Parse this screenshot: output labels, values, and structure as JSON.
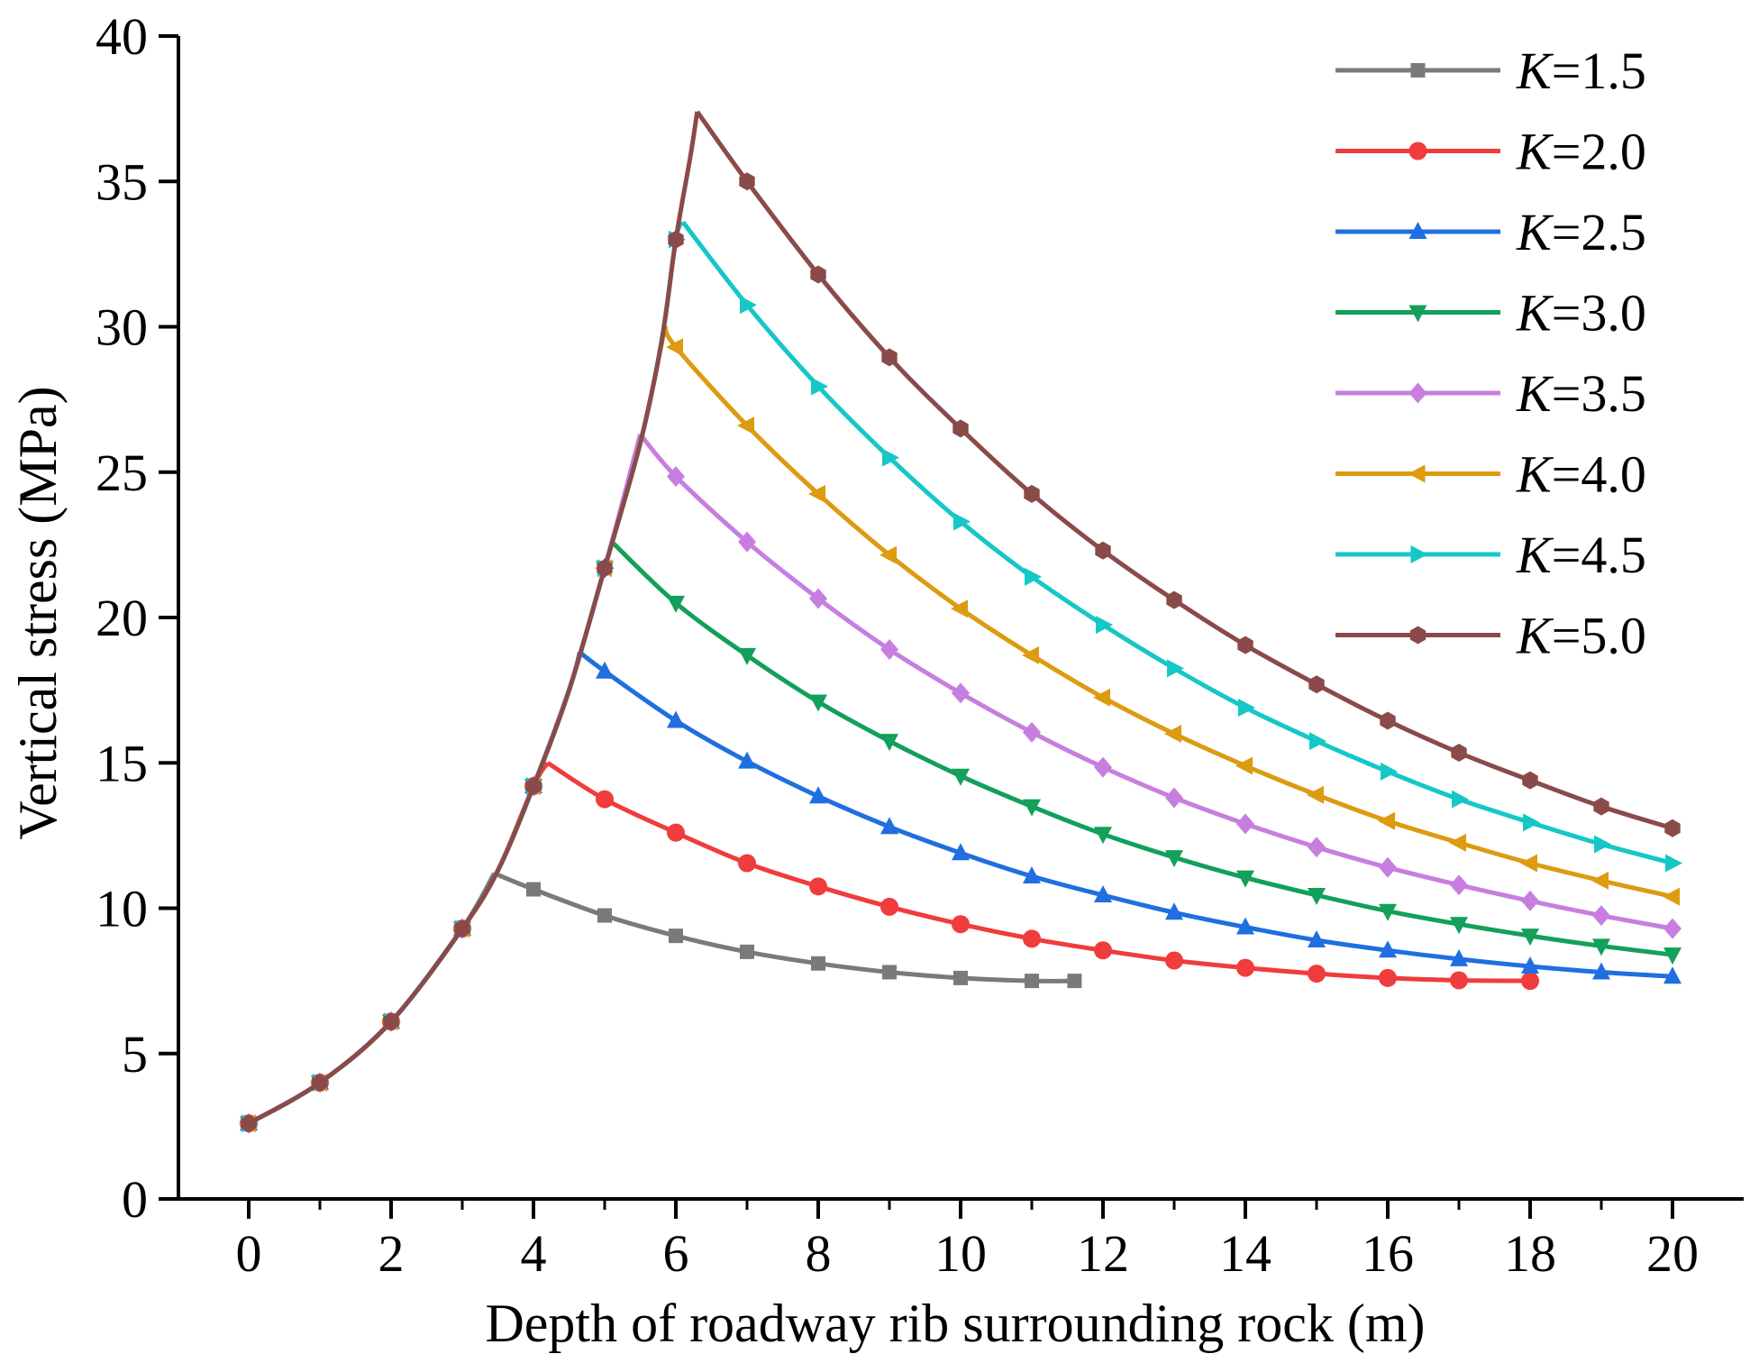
{
  "chart_data": {
    "type": "line",
    "xlabel": "Depth of roadway rib surrounding rock (m)",
    "ylabel": "Vertical stress (MPa)",
    "xlim": [
      -1,
      21
    ],
    "ylim": [
      0,
      40
    ],
    "xticks": [
      0,
      2,
      4,
      6,
      8,
      10,
      12,
      14,
      16,
      18,
      20
    ],
    "yticks": [
      0,
      5,
      10,
      15,
      20,
      25,
      30,
      35,
      40
    ],
    "grid": false,
    "legend_position": "top-right",
    "rising_branch": {
      "x": [
        0,
        1,
        2,
        3,
        3.5,
        4,
        4.5,
        5,
        5.5,
        5.8,
        6,
        6.2,
        6.3
      ],
      "y": [
        2.6,
        4.0,
        6.1,
        9.3,
        11.3,
        14.2,
        17.5,
        21.7,
        26.0,
        29.5,
        33.0,
        35.8,
        37.4
      ]
    },
    "series": [
      {
        "name": "K=1.5",
        "k_italic": "K",
        "k_rest": "=1.5",
        "color": "#7a7a7a",
        "marker": "square",
        "peak": [
          3.45,
          11.2
        ],
        "x": [
          4,
          5,
          6,
          7,
          8,
          9,
          10,
          11,
          11.6
        ],
        "y": [
          10.65,
          9.75,
          9.05,
          8.5,
          8.1,
          7.8,
          7.6,
          7.5,
          7.5
        ]
      },
      {
        "name": "K=2.0",
        "k_italic": "K",
        "k_rest": "=2.0",
        "color": "#f03c3c",
        "marker": "circle",
        "peak": [
          4.2,
          15.0
        ],
        "x": [
          5,
          6,
          7,
          8,
          9,
          10,
          11,
          12,
          13,
          14,
          15,
          16,
          17,
          18
        ],
        "y": [
          13.75,
          12.6,
          11.55,
          10.75,
          10.05,
          9.45,
          8.95,
          8.55,
          8.2,
          7.95,
          7.75,
          7.6,
          7.52,
          7.5
        ]
      },
      {
        "name": "K=2.5",
        "k_italic": "K",
        "k_rest": "=2.5",
        "color": "#1f6fe0",
        "marker": "triangle-up",
        "peak": [
          4.65,
          18.8
        ],
        "x": [
          5,
          6,
          7,
          8,
          9,
          10,
          11,
          12,
          13,
          14,
          15,
          16,
          17,
          18,
          19,
          20
        ],
        "y": [
          18.15,
          16.45,
          15.05,
          13.85,
          12.8,
          11.9,
          11.1,
          10.45,
          9.85,
          9.35,
          8.9,
          8.55,
          8.25,
          8.0,
          7.8,
          7.65
        ]
      },
      {
        "name": "K=3.0",
        "k_italic": "K",
        "k_rest": "=3.0",
        "color": "#12a05a",
        "marker": "triangle-down",
        "peak": [
          5.1,
          22.6
        ],
        "x": [
          6,
          7,
          8,
          9,
          10,
          11,
          12,
          13,
          14,
          15,
          16,
          17,
          18,
          19,
          20
        ],
        "y": [
          20.5,
          18.7,
          17.1,
          15.75,
          14.55,
          13.5,
          12.55,
          11.75,
          11.05,
          10.45,
          9.9,
          9.45,
          9.05,
          8.7,
          8.4
        ]
      },
      {
        "name": "K=3.5",
        "k_italic": "K",
        "k_rest": "=3.5",
        "color": "#c77ee0",
        "marker": "diamond",
        "peak": [
          5.5,
          26.3
        ],
        "x": [
          6,
          7,
          8,
          9,
          10,
          11,
          12,
          13,
          14,
          15,
          16,
          17,
          18,
          19,
          20
        ],
        "y": [
          24.85,
          22.6,
          20.65,
          18.9,
          17.4,
          16.05,
          14.85,
          13.8,
          12.9,
          12.1,
          11.4,
          10.8,
          10.25,
          9.75,
          9.3
        ]
      },
      {
        "name": "K=4.0",
        "k_italic": "K",
        "k_rest": "=4.0",
        "color": "#dc9b10",
        "marker": "triangle-left",
        "peak": [
          5.85,
          30.0
        ],
        "x": [
          6,
          7,
          8,
          9,
          10,
          11,
          12,
          13,
          14,
          15,
          16,
          17,
          18,
          19,
          20
        ],
        "y": [
          29.3,
          26.6,
          24.25,
          22.15,
          20.3,
          18.7,
          17.25,
          16.0,
          14.9,
          13.9,
          13.0,
          12.25,
          11.55,
          10.95,
          10.4
        ]
      },
      {
        "name": "K=4.5",
        "k_italic": "K",
        "k_rest": "=4.5",
        "color": "#16c7c7",
        "marker": "triangle-right",
        "peak": [
          6.1,
          33.6
        ],
        "x": [
          7,
          8,
          9,
          10,
          11,
          12,
          13,
          14,
          15,
          16,
          17,
          18,
          19,
          20
        ],
        "y": [
          30.75,
          27.95,
          25.5,
          23.3,
          21.4,
          19.75,
          18.25,
          16.9,
          15.75,
          14.7,
          13.75,
          12.95,
          12.2,
          11.55
        ]
      },
      {
        "name": "K=5.0",
        "k_italic": "K",
        "k_rest": "=5.0",
        "color": "#8b4a4a",
        "marker": "hexagon",
        "peak": [
          6.3,
          37.4
        ],
        "x": [
          7,
          8,
          9,
          10,
          11,
          12,
          13,
          14,
          15,
          16,
          17,
          18,
          19,
          20
        ],
        "y": [
          35.0,
          31.8,
          28.95,
          26.5,
          24.25,
          22.3,
          20.6,
          19.05,
          17.7,
          16.45,
          15.35,
          14.4,
          13.5,
          12.75
        ]
      }
    ]
  }
}
